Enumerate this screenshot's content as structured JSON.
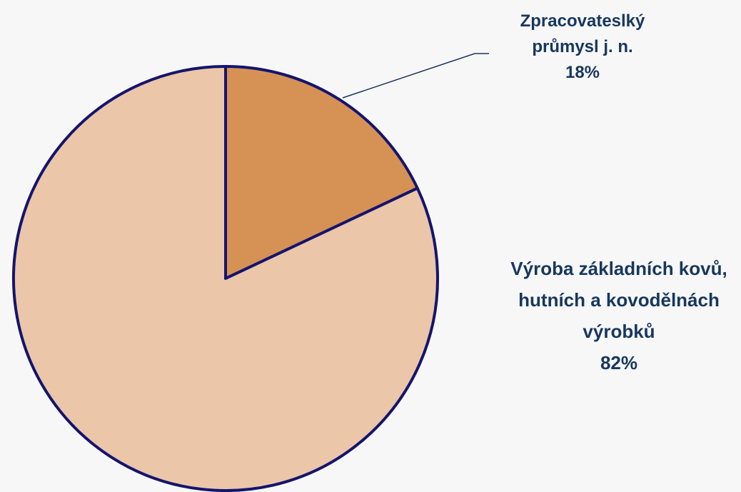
{
  "chart_data": {
    "type": "pie",
    "categories": [
      "Zpracovateslký průmysl j. n.",
      "Výroba základních kovů, hutních a kovodělnách výrobků"
    ],
    "values": [
      18,
      82
    ],
    "value_labels": [
      "18%",
      "82%"
    ],
    "colors": [
      "#d69155",
      "#ebc6a8"
    ],
    "stroke": "#14146e"
  }
}
